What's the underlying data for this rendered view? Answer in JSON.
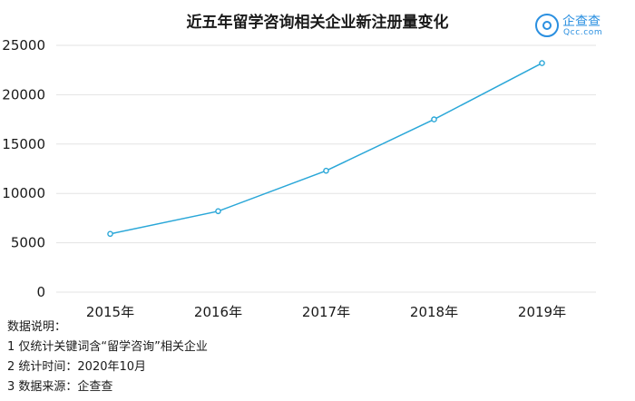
{
  "chart_data": {
    "type": "line",
    "title": "近五年留学咨询相关企业新注册量变化",
    "categories": [
      "2015年",
      "2016年",
      "2017年",
      "2018年",
      "2019年"
    ],
    "series": [
      {
        "values": [
          5900,
          8200,
          12300,
          17500,
          23200
        ]
      }
    ],
    "yticks": [
      "0",
      "5000",
      "10000",
      "15000",
      "20000",
      "25000"
    ],
    "ylim": [
      0,
      25000
    ],
    "grid": true,
    "line_color": "#2aa7d8"
  },
  "logo": {
    "name": "企查查",
    "url": "Qcc.com",
    "color": "#2a8fe0"
  },
  "notes": [
    "数据说明：",
    "1 仅统计关键词含“留学咨询”相关企业",
    "2 统计时间：2020年10月",
    "3 数据来源：企查查"
  ]
}
